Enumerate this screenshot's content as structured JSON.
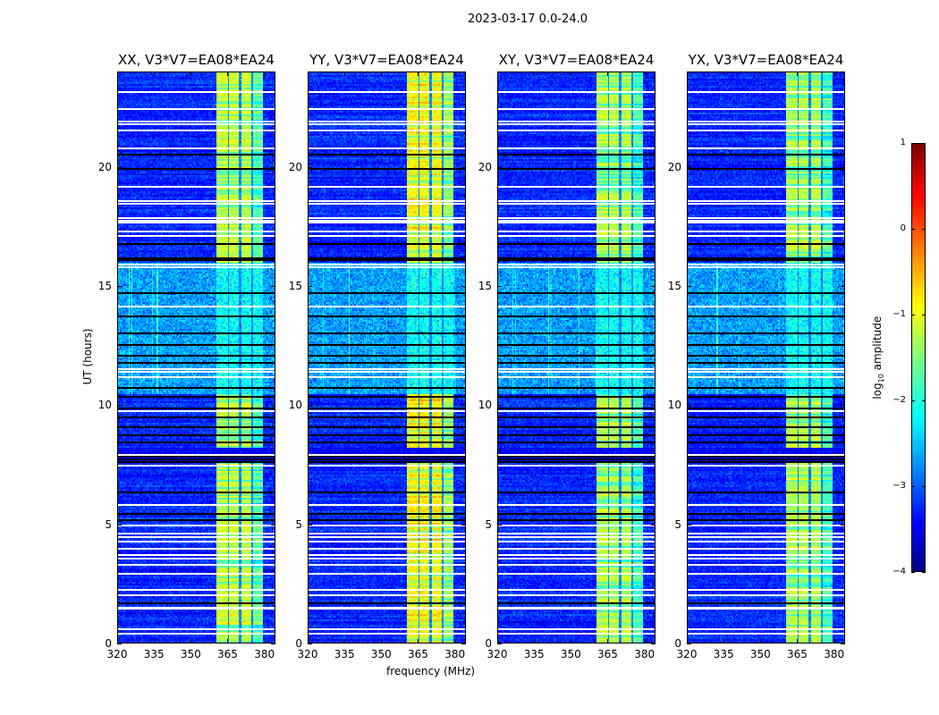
{
  "chart_data": {
    "type": "heatmap",
    "suptitle": "2023-03-17 0.0-24.0",
    "xlabel": "frequency (MHz)",
    "ylabel": "UT (hours)",
    "xlim": [
      320,
      384.5
    ],
    "ylim": [
      0,
      24
    ],
    "xticks": [
      320,
      335,
      350,
      365,
      380
    ],
    "yticks": [
      0,
      5,
      10,
      15,
      20
    ],
    "panels": [
      {
        "title": "XX, V3*V7=EA08*EA24",
        "band_level": -1.1
      },
      {
        "title": "YY, V3*V7=EA08*EA24",
        "band_level": -0.8
      },
      {
        "title": "XY, V3*V7=EA08*EA24",
        "band_level": -1.2
      },
      {
        "title": "YX, V3*V7=EA08*EA24",
        "band_level": -1.2
      }
    ],
    "colorbar": {
      "label": "log",
      "label_sub": "10",
      "label_rest": " amplitude",
      "range": [
        -4,
        1
      ],
      "ticks": [
        1,
        0,
        -1,
        -2,
        -3,
        -4
      ],
      "colormap": "jet"
    },
    "model": {
      "background_level": -3.2,
      "rfi_band_mhz": [
        360.7,
        380.2
      ],
      "rfi_gaps_mhz": [
        365.6,
        370.3,
        375.5
      ],
      "noisy_interval_h": [
        10.4,
        16.0
      ],
      "empty_interval_h": [
        7.55,
        8.2
      ],
      "white_flag_times_h": [
        23.2,
        22.5,
        21.97,
        21.87,
        21.6,
        20.83,
        19.22,
        18.62,
        18.52,
        17.9,
        17.81,
        17.71,
        17.34,
        17.16,
        15.94,
        15.85,
        14.2,
        11.55,
        11.45,
        11.2,
        9.77,
        7.95,
        7.5,
        5.83,
        4.98,
        4.64,
        4.48,
        4.27,
        3.98,
        3.73,
        3.58,
        3.3,
        2.92,
        2.24,
        2.02,
        1.5,
        1.47,
        0.61,
        0.43
      ],
      "black_flag_times_h": [
        20.56,
        19.97,
        16.8,
        16.22,
        16.15,
        14.75,
        13.75,
        13.07,
        12.55,
        12.1,
        11.8,
        10.75,
        10.37,
        9.9,
        9.5,
        9.1,
        8.75,
        8.45,
        7.85,
        7.75,
        7.65,
        6.35,
        5.46,
        5.18,
        1.71
      ]
    }
  }
}
